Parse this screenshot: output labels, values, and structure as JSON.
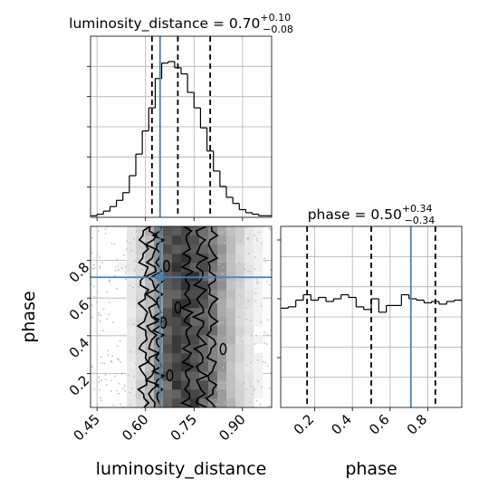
{
  "chart_data": {
    "type": "corner",
    "truth_color": "#4682b4",
    "parameters": [
      {
        "name": "luminosity_distance",
        "title_base": "luminosity_distance = 0.70",
        "title_plus": "+0.10",
        "title_minus": "−0.08",
        "median": 0.7,
        "quantiles": [
          0.62,
          0.7,
          0.8
        ],
        "truth": 0.645,
        "range": [
          0.43,
          0.99
        ],
        "ticks": [
          0.45,
          0.6,
          0.75,
          0.9
        ],
        "tick_labels": [
          "0.45",
          "0.60",
          "0.75",
          "0.90"
        ],
        "histogram": {
          "bin_edges": [
            0.43,
            0.45,
            0.47,
            0.49,
            0.51,
            0.53,
            0.55,
            0.57,
            0.59,
            0.61,
            0.63,
            0.65,
            0.67,
            0.69,
            0.71,
            0.73,
            0.75,
            0.77,
            0.79,
            0.81,
            0.83,
            0.85,
            0.87,
            0.89,
            0.91,
            0.93,
            0.95,
            0.97,
            0.99
          ],
          "counts": [
            1,
            2,
            4,
            7,
            11,
            16,
            27,
            41,
            56,
            71,
            90,
            100,
            101,
            97,
            93,
            81,
            71,
            58,
            43,
            30,
            20,
            13,
            9,
            5,
            3,
            2,
            1,
            1
          ]
        }
      },
      {
        "name": "phase",
        "title_base": "phase = 0.50",
        "title_plus": "+0.34",
        "title_minus": "−0.34",
        "median": 0.5,
        "quantiles": [
          0.16,
          0.5,
          0.84
        ],
        "truth": 0.71,
        "range": [
          0.02,
          0.98
        ],
        "ticks": [
          0.2,
          0.4,
          0.6,
          0.8
        ],
        "tick_labels": [
          "0.2",
          "0.4",
          "0.6",
          "0.8"
        ],
        "histogram": {
          "bin_edges": [
            0.02,
            0.06,
            0.1,
            0.14,
            0.18,
            0.22,
            0.26,
            0.3,
            0.34,
            0.38,
            0.42,
            0.46,
            0.5,
            0.54,
            0.58,
            0.62,
            0.66,
            0.7,
            0.74,
            0.78,
            0.82,
            0.86,
            0.9,
            0.94,
            0.98
          ],
          "counts": [
            74,
            75,
            80,
            84,
            80,
            82,
            79,
            81,
            84,
            82,
            75,
            73,
            81,
            71,
            76,
            76,
            84,
            81,
            80,
            78,
            79,
            77,
            79,
            80
          ]
        }
      }
    ],
    "joint": {
      "x_param": "luminosity_distance",
      "y_param": "phase",
      "contour_levels": [
        "inner",
        "middle",
        "outer"
      ]
    },
    "grid": true
  }
}
